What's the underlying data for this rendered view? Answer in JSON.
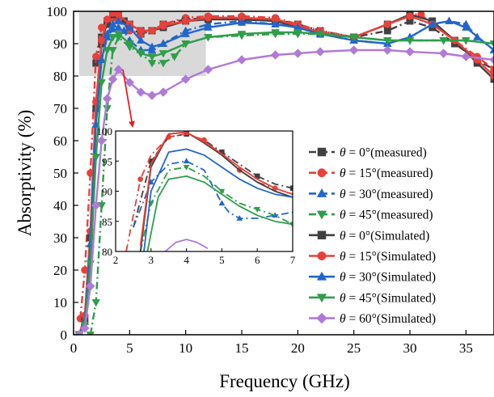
{
  "chart_data": [
    {
      "type": "line",
      "xlabel": "Frequency (GHz)",
      "ylabel": "Absorptivity (%)",
      "xlim": [
        0,
        37.5
      ],
      "ylim": [
        0,
        100
      ],
      "xticks": [
        0,
        5,
        10,
        15,
        20,
        25,
        30,
        35
      ],
      "yticks": [
        0,
        10,
        20,
        30,
        40,
        50,
        60,
        70,
        80,
        90,
        100
      ],
      "grid": false,
      "legend_position": "center-right",
      "highlight_region": {
        "x": [
          0.5,
          11.8
        ],
        "y": [
          80,
          100
        ],
        "color": "#d9d9d9"
      },
      "series": [
        {
          "name": "θ = 0°(measured)",
          "label_prefix": "θ",
          "label_rest": " = 0°(measured)",
          "color": "#404040",
          "marker": "square",
          "dash": "dashdot",
          "x": [
            2.0,
            2.5,
            3.0,
            3.5,
            4.0,
            4.5,
            5.0,
            6.0,
            7.0,
            8.0,
            10.0,
            12.0,
            15.0,
            18.0,
            20.0,
            22.0,
            25.0,
            28.0,
            30.0,
            32.0,
            34.0,
            36.0,
            37.5
          ],
          "y": [
            84,
            92,
            96,
            98,
            98,
            97,
            95,
            93,
            94,
            96,
            97.5,
            98,
            98,
            97.5,
            96,
            94,
            92,
            94,
            97,
            95,
            90,
            85,
            82
          ]
        },
        {
          "name": "θ = 15°(measured)",
          "label_prefix": "θ",
          "label_rest": " = 15°(measured)",
          "color": "#e8403a",
          "marker": "circle",
          "dash": "dashdot",
          "x": [
            0.6,
            1.0,
            1.5,
            2.0,
            2.5,
            3.0,
            3.5,
            4.0,
            5.0,
            6.0,
            7.0,
            8.0,
            10.0,
            12.0,
            15.0,
            18.0,
            20.0,
            22.0,
            25.0,
            28.0,
            30.0,
            31.0,
            32.0,
            34.0,
            36.0,
            37.5
          ],
          "y": [
            5,
            20,
            50,
            86,
            95,
            97,
            98,
            97.5,
            94,
            93,
            94,
            96,
            98,
            98.5,
            98.5,
            98,
            96,
            94,
            92,
            96,
            99,
            99,
            96,
            91,
            86,
            82
          ]
        },
        {
          "name": "θ = 30°(measured)",
          "label_prefix": "θ",
          "label_rest": " = 30°(measured)",
          "color": "#2266cc",
          "marker": "triangle-up",
          "dash": "dashdot",
          "x": [
            2.0,
            2.5,
            3.0,
            3.5,
            4.0,
            4.5,
            5.0,
            6.0,
            7.0,
            8.0,
            10.0,
            12.0,
            15.0,
            18.0,
            20.0,
            22.0,
            25.0,
            28.0,
            30.0,
            32.0,
            33.5,
            35.0,
            36.0,
            37.5
          ],
          "y": [
            70,
            85,
            92,
            94.5,
            95,
            94,
            91,
            88,
            88,
            90,
            94,
            96,
            97,
            96,
            95,
            93,
            91,
            90,
            92,
            96,
            97,
            96,
            92,
            88
          ]
        },
        {
          "name": "θ = 45°(measured)",
          "label_prefix": "θ",
          "label_rest": " = 45°(measured)",
          "color": "#2e9e4a",
          "marker": "triangle-down",
          "dash": "dashdot",
          "x": [
            1.5,
            2.0,
            2.5,
            3.0,
            3.5,
            4.0,
            5.0,
            6.0,
            7.0,
            8.0,
            9.0,
            10.0,
            12.0,
            15.0,
            18.0,
            20.0,
            22.0,
            25.0,
            28.0,
            30.0,
            33.0,
            35.0,
            37.5
          ],
          "y": [
            0,
            10,
            40,
            70,
            88,
            92,
            89,
            87,
            84,
            84,
            86,
            90,
            92,
            92.5,
            93,
            93,
            93,
            92,
            91,
            91,
            91,
            91,
            90
          ]
        },
        {
          "name": "θ = 0°(Simulated)",
          "label_prefix": "θ",
          "label_rest": " = 0°(Simulated)",
          "color": "#404040",
          "marker": "square",
          "dash": "solid",
          "x": [
            0.5,
            1.0,
            1.5,
            2.0,
            2.5,
            3.0,
            3.5,
            4.0,
            5.0,
            6.0,
            7.0,
            8.0,
            10.0,
            12.0,
            15.0,
            18.0,
            20.0,
            22.0,
            25.0,
            28.0,
            30.0,
            32.0,
            34.0,
            36.0,
            37.5
          ],
          "y": [
            0,
            5,
            30,
            70,
            90,
            97,
            99,
            99,
            96,
            94,
            94,
            95,
            97,
            97.5,
            97.5,
            97,
            95,
            93,
            92,
            96,
            99,
            97,
            91,
            84,
            79
          ]
        },
        {
          "name": "θ = 15°(Simulated)",
          "label_prefix": "θ",
          "label_rest": " = 15°(Simulated)",
          "color": "#e8403a",
          "marker": "circle",
          "dash": "solid",
          "x": [
            0.5,
            1.0,
            1.5,
            2.0,
            2.5,
            3.0,
            3.5,
            4.0,
            5.0,
            6.0,
            7.0,
            8.0,
            10.0,
            12.0,
            15.0,
            18.0,
            20.0,
            22.0,
            25.0,
            28.0,
            30.0,
            32.0,
            34.0,
            36.0,
            37.5
          ],
          "y": [
            0,
            6,
            32,
            72,
            91,
            97.5,
            99.5,
            99,
            96,
            94,
            94,
            95.5,
            97,
            98,
            98,
            97.5,
            95.5,
            93.5,
            92,
            96,
            98.5,
            96,
            91,
            85,
            80
          ]
        },
        {
          "name": "θ = 30°(Simulated)",
          "label_prefix": "θ",
          "label_rest": " = 30°(Simulated)",
          "color": "#2266cc",
          "marker": "triangle-up",
          "dash": "solid",
          "x": [
            0.5,
            1.0,
            1.5,
            2.0,
            2.5,
            3.0,
            3.5,
            4.0,
            5.0,
            6.0,
            7.0,
            8.0,
            10.0,
            12.0,
            15.0,
            18.0,
            20.0,
            22.0,
            25.0,
            28.0,
            30.0,
            32.0,
            33.5,
            35.0,
            37.5
          ],
          "y": [
            0,
            4,
            28,
            65,
            85,
            93,
            96,
            97,
            95,
            91,
            89,
            90,
            93,
            95,
            96.5,
            96,
            95,
            93,
            91,
            90,
            92,
            96,
            97,
            95,
            88
          ]
        },
        {
          "name": "θ = 45°(Simulated)",
          "label_prefix": "θ",
          "label_rest": " = 45°(Simulated)",
          "color": "#2e9e4a",
          "marker": "triangle-down",
          "dash": "solid",
          "x": [
            0.5,
            1.0,
            1.5,
            2.0,
            2.5,
            3.0,
            3.5,
            4.0,
            5.0,
            6.0,
            7.0,
            8.0,
            10.0,
            12.0,
            15.0,
            18.0,
            20.0,
            22.0,
            25.0,
            28.0,
            30.0,
            33.0,
            35.0,
            37.5
          ],
          "y": [
            0,
            3,
            22,
            55,
            78,
            88,
            92,
            93,
            90,
            87,
            86,
            87,
            90,
            92,
            93,
            93.5,
            93.5,
            93,
            92,
            91,
            91,
            91,
            91,
            90
          ]
        },
        {
          "name": "θ = 60°(Simulated)",
          "label_prefix": "θ",
          "label_rest": " = 60°(Simulated)",
          "color": "#b07ad8",
          "marker": "diamond",
          "dash": "solid",
          "x": [
            0.5,
            1.0,
            1.5,
            2.0,
            2.5,
            3.0,
            3.5,
            4.0,
            5.0,
            6.0,
            7.0,
            8.0,
            10.0,
            12.0,
            15.0,
            18.0,
            20.0,
            22.0,
            25.0,
            28.0,
            30.0,
            33.0,
            35.0,
            37.5
          ],
          "y": [
            0,
            2,
            15,
            40,
            60,
            73,
            79,
            82,
            78,
            75,
            74,
            75,
            79,
            82,
            85,
            86.5,
            87,
            87.5,
            88,
            88,
            87.5,
            87,
            86,
            85
          ]
        }
      ]
    },
    {
      "type": "line",
      "inset": true,
      "xlim": [
        2,
        7
      ],
      "ylim": [
        80,
        100
      ],
      "xticks": [
        2,
        3,
        4,
        5,
        6,
        7
      ],
      "yticks": [
        80,
        85,
        90,
        95,
        100
      ],
      "series": [
        {
          "name": "θ = 0°(measured)",
          "color": "#404040",
          "dash": "dashdot",
          "x": [
            2.5,
            3.0,
            3.5,
            4.0,
            4.5,
            5.0,
            5.5,
            6.0,
            6.5,
            7.0
          ],
          "y": [
            84,
            95,
            99,
            99.5,
            98.5,
            96.5,
            94.5,
            92.5,
            91.2,
            90.5
          ]
        },
        {
          "name": "θ = 15°(measured)",
          "color": "#e8403a",
          "dash": "dashdot",
          "x": [
            2.3,
            2.7,
            3.0,
            3.5,
            4.0,
            4.5,
            5.0,
            5.5,
            6.0,
            6.5,
            7.0
          ],
          "y": [
            80,
            92,
            96,
            99,
            99.5,
            98.5,
            96,
            93.5,
            91.5,
            90.5,
            89.5
          ]
        },
        {
          "name": "θ = 30°(measured)",
          "color": "#2266cc",
          "dash": "dashdot",
          "x": [
            2.5,
            3.0,
            3.5,
            4.0,
            4.5,
            5.0,
            5.2,
            5.5,
            6.0,
            6.5,
            7.0
          ],
          "y": [
            84,
            91.5,
            94.5,
            95,
            93.5,
            88,
            86.5,
            85.5,
            85.5,
            86,
            86.5
          ]
        },
        {
          "name": "θ = 45°(measured)",
          "color": "#2e9e4a",
          "dash": "dashdot",
          "x": [
            2.7,
            3.0,
            3.5,
            4.0,
            4.5,
            5.0,
            5.5,
            6.0,
            6.5,
            7.0
          ],
          "y": [
            80,
            88,
            93.5,
            94,
            92.5,
            90,
            88,
            87,
            86,
            84.5
          ]
        },
        {
          "name": "θ = 0°(Simulated)",
          "color": "#404040",
          "dash": "solid",
          "x": [
            2.7,
            3.0,
            3.5,
            4.0,
            4.5,
            5.0,
            5.5,
            6.0,
            6.5,
            7.0
          ],
          "y": [
            80,
            94,
            99.5,
            99.8,
            98,
            96,
            93.5,
            91.5,
            90,
            89
          ]
        },
        {
          "name": "θ = 15°(Simulated)",
          "color": "#e8403a",
          "dash": "solid",
          "x": [
            2.7,
            3.0,
            3.5,
            4.0,
            4.5,
            5.0,
            5.5,
            6.0,
            6.5,
            7.0
          ],
          "y": [
            81,
            94.5,
            99.5,
            99.8,
            98.2,
            96.2,
            94,
            92,
            90.5,
            89.5
          ]
        },
        {
          "name": "θ = 30°(Simulated)",
          "color": "#2266cc",
          "dash": "solid",
          "x": [
            2.8,
            3.0,
            3.5,
            4.0,
            4.5,
            5.0,
            5.5,
            6.0,
            6.5,
            7.0
          ],
          "y": [
            80,
            90,
            96.5,
            97,
            96,
            94,
            92,
            90.5,
            89.5,
            89
          ]
        },
        {
          "name": "θ = 45°(Simulated)",
          "color": "#2e9e4a",
          "dash": "solid",
          "x": [
            2.9,
            3.2,
            3.5,
            4.0,
            4.5,
            5.0,
            5.5,
            6.0,
            6.5,
            7.0
          ],
          "y": [
            80,
            89,
            92,
            92.5,
            91.5,
            89.5,
            87.5,
            86,
            85,
            84.5
          ]
        },
        {
          "name": "θ = 60°(Simulated)",
          "color": "#b07ad8",
          "dash": "solid",
          "x": [
            3.4,
            3.7,
            4.0,
            4.3,
            4.6
          ],
          "y": [
            80,
            81.5,
            82,
            81.5,
            80.5
          ]
        }
      ]
    }
  ]
}
